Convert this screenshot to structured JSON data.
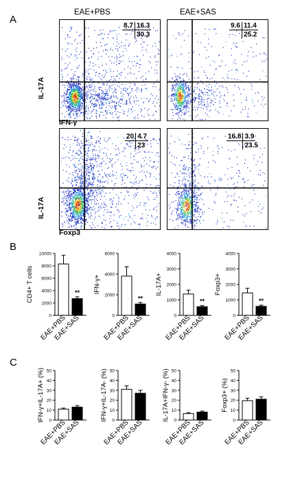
{
  "panel_A": {
    "letter": "A",
    "conditions": [
      "EAE+PBS",
      "EAE+SAS"
    ],
    "ylabel": "IL-17A",
    "plots": [
      {
        "condition": "EAE+PBS",
        "xlabel": "IFN-γ",
        "q_tl": "8.7",
        "q_tr": "16.3",
        "q_br": "30.3"
      },
      {
        "condition": "EAE+SAS",
        "xlabel": "IFN-γ",
        "q_tl": "9.6",
        "q_tr": "11.4",
        "q_br": "25.2"
      },
      {
        "condition": "EAE+PBS",
        "xlabel": "Foxp3",
        "q_tl": "20",
        "q_tr": "4.7",
        "q_br": "23"
      },
      {
        "condition": "EAE+SAS",
        "xlabel": "Foxp3",
        "q_tl": "16.8",
        "q_tr": "3.9",
        "q_br": "23.5"
      }
    ]
  },
  "panel_B": {
    "letter": "B"
  },
  "panel_C": {
    "letter": "C"
  },
  "colors": {
    "pbs_fill": "#ffffff",
    "sas_fill": "#000000",
    "dot_density": [
      "#2030c0",
      "#30a0e0",
      "#30c060",
      "#e0c020",
      "#e05010"
    ]
  },
  "chart_data": [
    {
      "type": "bar",
      "panel": "B",
      "categories": [
        "EAE+PBS",
        "EAE+SAS"
      ],
      "values": [
        8300,
        2700
      ],
      "errors": [
        1400,
        300
      ],
      "ylabel": "CD4+ T cells",
      "ylim": [
        0,
        10000
      ],
      "yticks": [
        0,
        2000,
        4000,
        6000,
        8000,
        10000
      ],
      "annotation": "**"
    },
    {
      "type": "bar",
      "panel": "B",
      "categories": [
        "EAE+PBS",
        "EAE+SAS"
      ],
      "values": [
        3800,
        1100
      ],
      "errors": [
        900,
        150
      ],
      "ylabel": "IFN-γ+",
      "ylim": [
        0,
        6000
      ],
      "yticks": [
        0,
        2000,
        4000,
        6000
      ],
      "annotation": "**"
    },
    {
      "type": "bar",
      "panel": "B",
      "categories": [
        "EAE+PBS",
        "EAE+SAS"
      ],
      "values": [
        1380,
        560
      ],
      "errors": [
        250,
        80
      ],
      "ylabel": "IL-17A+",
      "ylim": [
        0,
        4000
      ],
      "yticks": [
        0,
        1000,
        2000,
        3000,
        4000
      ],
      "annotation": "**"
    },
    {
      "type": "bar",
      "panel": "B",
      "categories": [
        "EAE+PBS",
        "EAE+SAS"
      ],
      "values": [
        1450,
        580
      ],
      "errors": [
        300,
        80
      ],
      "ylabel": "Foxp3+",
      "ylim": [
        0,
        4000
      ],
      "yticks": [
        0,
        1000,
        2000,
        3000,
        4000
      ],
      "annotation": "**"
    },
    {
      "type": "bar",
      "panel": "C",
      "categories": [
        "EAE+PBS",
        "EAE+SAS"
      ],
      "values": [
        11,
        13
      ],
      "errors": [
        1,
        1.5
      ],
      "ylabel": "IFN-γ+IL-17A+ (%)",
      "ylim": [
        0,
        50
      ],
      "yticks": [
        0,
        10,
        20,
        30,
        40,
        50
      ],
      "annotation": ""
    },
    {
      "type": "bar",
      "panel": "C",
      "categories": [
        "EAE+PBS",
        "EAE+SAS"
      ],
      "values": [
        31,
        27
      ],
      "errors": [
        3.5,
        3
      ],
      "ylabel": "IFN-γ+IL-17A- (%)",
      "ylim": [
        0,
        50
      ],
      "yticks": [
        0,
        10,
        20,
        30,
        40,
        50
      ],
      "annotation": ""
    },
    {
      "type": "bar",
      "panel": "C",
      "categories": [
        "EAE+PBS",
        "EAE+SAS"
      ],
      "values": [
        6.5,
        8
      ],
      "errors": [
        1,
        1
      ],
      "ylabel": "IL-17A+IFN-γ- (%)",
      "ylim": [
        0,
        50
      ],
      "yticks": [
        0,
        10,
        20,
        30,
        40,
        50
      ],
      "annotation": ""
    },
    {
      "type": "bar",
      "panel": "C",
      "categories": [
        "EAE+PBS",
        "EAE+SAS"
      ],
      "values": [
        19.5,
        21
      ],
      "errors": [
        2.5,
        2.5
      ],
      "ylabel": "Foxp3+ (%)",
      "ylim": [
        0,
        50
      ],
      "yticks": [
        0,
        10,
        20,
        30,
        40,
        50
      ],
      "annotation": ""
    }
  ]
}
